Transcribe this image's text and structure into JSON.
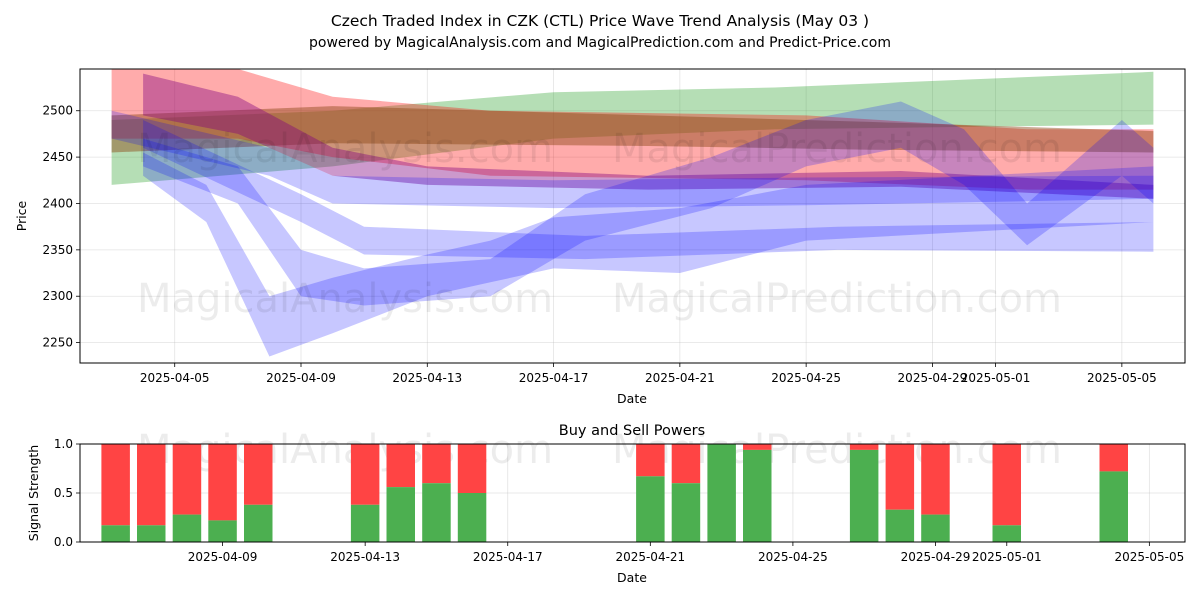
{
  "title_line1": "Czech Traded Index in CZK (CTL) Price Wave Trend Analysis (May 03 )",
  "title_line2": "powered by MagicalAnalysis.com and MagicalPrediction.com and Predict-Price.com",
  "watermarks": [
    "MagicalAnalysis.com",
    "MagicalPrediction.com"
  ],
  "colors": {
    "green": "#2ca02c",
    "red": "#ff0000",
    "blue": "#0000ff",
    "purple": "#800080",
    "brown": "#8b4513",
    "buy": "#4caf50",
    "sell": "#ff4444"
  },
  "chart_data": [
    {
      "type": "area",
      "name": "price-wave-chart",
      "xlabel": "Date",
      "ylabel": "Price",
      "x_ticks": [
        "2025-04-05",
        "2025-04-09",
        "2025-04-13",
        "2025-04-17",
        "2025-04-21",
        "2025-04-25",
        "2025-04-29",
        "2025-05-01",
        "2025-05-05"
      ],
      "y_ticks": [
        2250,
        2300,
        2350,
        2400,
        2450,
        2500
      ],
      "xlim": [
        "2025-04-02",
        "2025-05-07"
      ],
      "ylim": [
        2228,
        2545
      ],
      "grid": true,
      "series": [
        {
          "color": "green",
          "upper": [
            [
              "2025-04-03",
              2490
            ],
            [
              "2025-04-10",
              2500
            ],
            [
              "2025-04-17",
              2520
            ],
            [
              "2025-04-24",
              2525
            ],
            [
              "2025-05-06",
              2542
            ]
          ],
          "lower": [
            [
              "2025-04-03",
              2420
            ],
            [
              "2025-04-10",
              2440
            ],
            [
              "2025-04-17",
              2470
            ],
            [
              "2025-04-24",
              2480
            ],
            [
              "2025-05-06",
              2485
            ]
          ]
        },
        {
          "color": "red",
          "upper": [
            [
              "2025-04-03",
              2545
            ],
            [
              "2025-04-07",
              2545
            ],
            [
              "2025-04-10",
              2515
            ],
            [
              "2025-04-15",
              2500
            ],
            [
              "2025-04-25",
              2495
            ],
            [
              "2025-05-02",
              2480
            ],
            [
              "2025-05-06",
              2480
            ]
          ],
          "lower": [
            [
              "2025-04-03",
              2470
            ],
            [
              "2025-04-07",
              2470
            ],
            [
              "2025-04-10",
              2450
            ],
            [
              "2025-04-15",
              2430
            ],
            [
              "2025-04-25",
              2425
            ],
            [
              "2025-05-02",
              2415
            ],
            [
              "2025-05-06",
              2415
            ]
          ]
        },
        {
          "color": "brown",
          "upper": [
            [
              "2025-04-03",
              2495
            ],
            [
              "2025-04-10",
              2505
            ],
            [
              "2025-04-20",
              2495
            ],
            [
              "2025-04-27",
              2488
            ],
            [
              "2025-05-06",
              2478
            ]
          ],
          "lower": [
            [
              "2025-04-03",
              2455
            ],
            [
              "2025-04-10",
              2465
            ],
            [
              "2025-04-20",
              2462
            ],
            [
              "2025-04-27",
              2458
            ],
            [
              "2025-05-06",
              2455
            ]
          ]
        },
        {
          "color": "purple",
          "upper": [
            [
              "2025-04-04",
              2540
            ],
            [
              "2025-04-07",
              2515
            ],
            [
              "2025-04-10",
              2460
            ],
            [
              "2025-04-13",
              2440
            ],
            [
              "2025-04-20",
              2430
            ],
            [
              "2025-04-28",
              2435
            ],
            [
              "2025-05-06",
              2420
            ]
          ],
          "lower": [
            [
              "2025-04-04",
              2495
            ],
            [
              "2025-04-07",
              2475
            ],
            [
              "2025-04-10",
              2430
            ],
            [
              "2025-04-13",
              2420
            ],
            [
              "2025-04-20",
              2415
            ],
            [
              "2025-04-28",
              2418
            ],
            [
              "2025-05-06",
              2405
            ]
          ]
        },
        {
          "color": "blue",
          "upper": [
            [
              "2025-04-03",
              2500
            ],
            [
              "2025-04-08",
              2460
            ],
            [
              "2025-04-10",
              2430
            ],
            [
              "2025-04-17",
              2425
            ],
            [
              "2025-04-25",
              2428
            ],
            [
              "2025-05-06",
              2430
            ]
          ],
          "lower": [
            [
              "2025-04-03",
              2470
            ],
            [
              "2025-04-08",
              2430
            ],
            [
              "2025-04-10",
              2400
            ],
            [
              "2025-04-17",
              2395
            ],
            [
              "2025-04-25",
              2398
            ],
            [
              "2025-05-06",
              2405
            ]
          ]
        },
        {
          "color": "blue",
          "upper": [
            [
              "2025-04-04",
              2490
            ],
            [
              "2025-04-09",
              2410
            ],
            [
              "2025-04-11",
              2375
            ],
            [
              "2025-04-18",
              2365
            ],
            [
              "2025-04-26",
              2375
            ],
            [
              "2025-05-06",
              2380
            ]
          ],
          "lower": [
            [
              "2025-04-04",
              2460
            ],
            [
              "2025-04-09",
              2380
            ],
            [
              "2025-04-11",
              2345
            ],
            [
              "2025-04-18",
              2340
            ],
            [
              "2025-04-26",
              2350
            ],
            [
              "2025-05-06",
              2348
            ]
          ]
        },
        {
          "color": "blue",
          "upper": [
            [
              "2025-04-04",
              2470
            ],
            [
              "2025-04-07",
              2440
            ],
            [
              "2025-04-09",
              2350
            ],
            [
              "2025-04-11",
              2330
            ],
            [
              "2025-04-15",
              2340
            ],
            [
              "2025-04-18",
              2410
            ],
            [
              "2025-04-22",
              2450
            ],
            [
              "2025-04-25",
              2490
            ],
            [
              "2025-04-28",
              2510
            ],
            [
              "2025-04-30",
              2480
            ],
            [
              "2025-05-02",
              2400
            ],
            [
              "2025-05-05",
              2490
            ],
            [
              "2025-05-06",
              2460
            ]
          ],
          "lower": [
            [
              "2025-04-04",
              2440
            ],
            [
              "2025-04-07",
              2400
            ],
            [
              "2025-04-09",
              2300
            ],
            [
              "2025-04-11",
              2290
            ],
            [
              "2025-04-15",
              2300
            ],
            [
              "2025-04-18",
              2360
            ],
            [
              "2025-04-22",
              2395
            ],
            [
              "2025-04-25",
              2440
            ],
            [
              "2025-04-28",
              2460
            ],
            [
              "2025-04-30",
              2420
            ],
            [
              "2025-05-02",
              2355
            ],
            [
              "2025-05-05",
              2430
            ],
            [
              "2025-05-06",
              2400
            ]
          ]
        },
        {
          "color": "blue",
          "upper": [
            [
              "2025-04-04",
              2455
            ],
            [
              "2025-04-06",
              2420
            ],
            [
              "2025-04-08",
              2300
            ],
            [
              "2025-04-10",
              2320
            ],
            [
              "2025-04-13",
              2345
            ],
            [
              "2025-04-15",
              2360
            ],
            [
              "2025-04-17",
              2385
            ],
            [
              "2025-04-21",
              2395
            ],
            [
              "2025-04-25",
              2420
            ],
            [
              "2025-05-06",
              2440
            ]
          ],
          "lower": [
            [
              "2025-04-04",
              2430
            ],
            [
              "2025-04-06",
              2380
            ],
            [
              "2025-04-08",
              2235
            ],
            [
              "2025-04-10",
              2260
            ],
            [
              "2025-04-13",
              2300
            ],
            [
              "2025-04-15",
              2315
            ],
            [
              "2025-04-17",
              2330
            ],
            [
              "2025-04-21",
              2325
            ],
            [
              "2025-04-25",
              2360
            ],
            [
              "2025-05-06",
              2380
            ]
          ]
        }
      ]
    },
    {
      "type": "bar",
      "name": "buy-sell-powers",
      "title": "Buy and Sell Powers",
      "xlabel": "Date",
      "ylabel": "Signal Strength",
      "x_ticks": [
        "2025-04-09",
        "2025-04-13",
        "2025-04-17",
        "2025-04-21",
        "2025-04-25",
        "2025-04-29",
        "2025-05-01",
        "2025-05-05"
      ],
      "y_ticks": [
        "0.0",
        "0.5",
        "1.0"
      ],
      "xlim": [
        "2025-04-05",
        "2025-05-06"
      ],
      "ylim": [
        0,
        1
      ],
      "grid": true,
      "series_names": [
        "buy",
        "sell"
      ],
      "bars": [
        {
          "date": "2025-04-06",
          "buy": 0.17
        },
        {
          "date": "2025-04-07",
          "buy": 0.17
        },
        {
          "date": "2025-04-08",
          "buy": 0.28
        },
        {
          "date": "2025-04-09",
          "buy": 0.22
        },
        {
          "date": "2025-04-10",
          "buy": 0.38
        },
        {
          "date": "2025-04-13",
          "buy": 0.38
        },
        {
          "date": "2025-04-14",
          "buy": 0.56
        },
        {
          "date": "2025-04-15",
          "buy": 0.6
        },
        {
          "date": "2025-04-16",
          "buy": 0.5
        },
        {
          "date": "2025-04-21",
          "buy": 0.67
        },
        {
          "date": "2025-04-22",
          "buy": 0.6
        },
        {
          "date": "2025-04-23",
          "buy": 1.0
        },
        {
          "date": "2025-04-24",
          "buy": 0.94
        },
        {
          "date": "2025-04-27",
          "buy": 0.94
        },
        {
          "date": "2025-04-28",
          "buy": 0.33
        },
        {
          "date": "2025-04-29",
          "buy": 0.28
        },
        {
          "date": "2025-05-01",
          "buy": 0.17
        },
        {
          "date": "2025-05-04",
          "buy": 0.72
        }
      ]
    }
  ]
}
